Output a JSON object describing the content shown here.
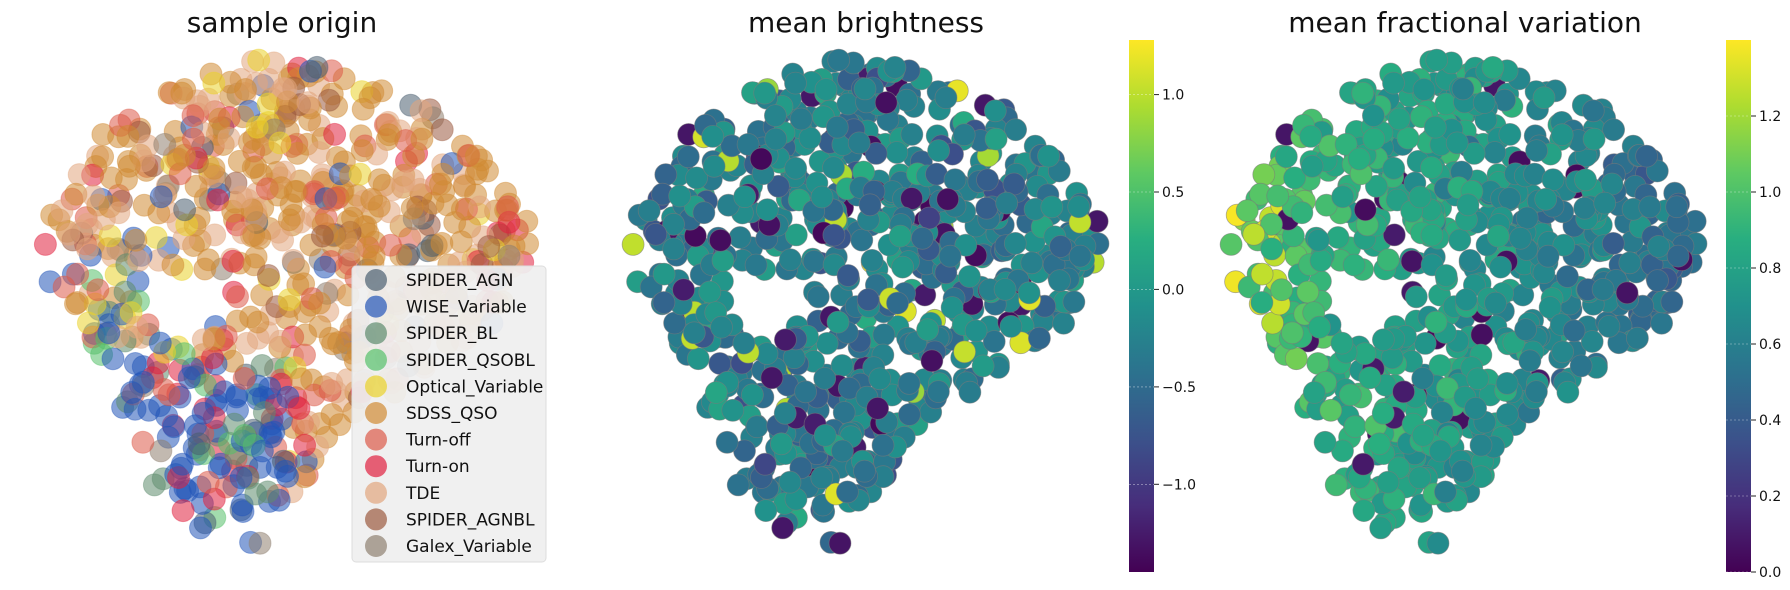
{
  "chart_data": [
    {
      "type": "scatter",
      "title": "sample origin",
      "xlabel": "",
      "ylabel": "",
      "legend_position": "lower-right",
      "series": [
        {
          "name": "SPIDER_AGN",
          "color": "#4b5f70"
        },
        {
          "name": "WISE_Variable",
          "color": "#2355b8"
        },
        {
          "name": "SPIDER_BL",
          "color": "#5e8c6e"
        },
        {
          "name": "SPIDER_QSOBL",
          "color": "#56c06a"
        },
        {
          "name": "Optical_Variable",
          "color": "#ead22a"
        },
        {
          "name": "SDSS_QSO",
          "color": "#d08a33"
        },
        {
          "name": "Turn-off",
          "color": "#dc5a48"
        },
        {
          "name": "Turn-on",
          "color": "#e0203e"
        },
        {
          "name": "TDE",
          "color": "#e1a57e"
        },
        {
          "name": "SPIDER_AGNBL",
          "color": "#9b5a3f"
        },
        {
          "name": "Galex_Variable",
          "color": "#8f8070"
        }
      ]
    },
    {
      "type": "scatter",
      "title": "mean brightness",
      "xlabel": "",
      "ylabel": "",
      "colormap": "viridis",
      "colorbar": {
        "min": -1.45,
        "max": 1.28,
        "ticks": [
          -1.0,
          -0.5,
          0.0,
          0.5,
          1.0
        ],
        "tick_labels": [
          "−1.0",
          "−0.5",
          "0.0",
          "0.5",
          "1.0"
        ]
      }
    },
    {
      "type": "scatter",
      "title": "mean fractional variation",
      "xlabel": "",
      "ylabel": "",
      "colormap": "viridis",
      "colorbar": {
        "min": 0.0,
        "max": 1.4,
        "ticks": [
          0.0,
          0.2,
          0.4,
          0.6,
          0.8,
          1.0,
          1.2
        ],
        "tick_labels": [
          "0.0",
          "0.2",
          "0.4",
          "0.6",
          "0.8",
          "1.0",
          "1.2"
        ]
      }
    }
  ]
}
